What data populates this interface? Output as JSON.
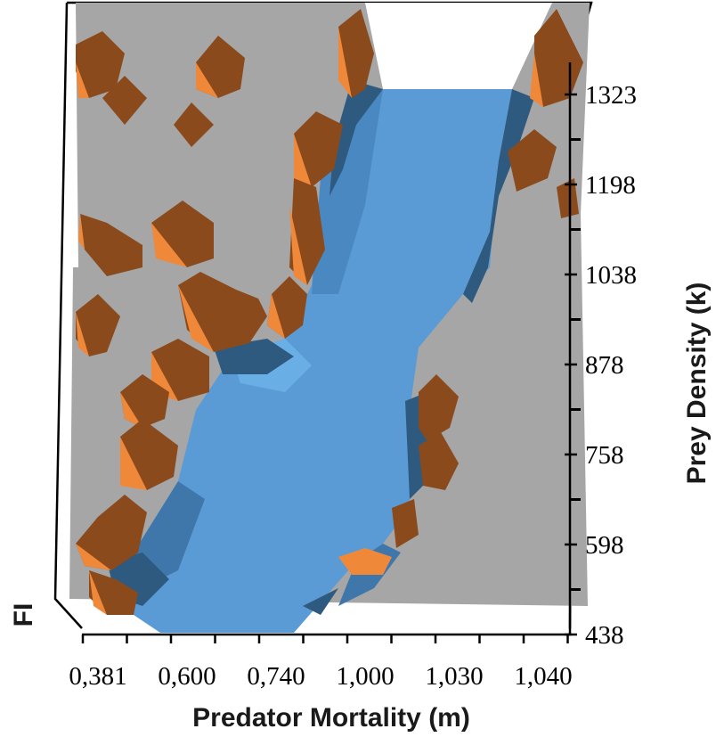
{
  "chart_data": {
    "type": "surface",
    "title": "",
    "xlabel": "Predator Mortality (m)",
    "ylabel": "Prey Density (k)",
    "zlabel": "FI",
    "x_tick_labels": [
      "0,381",
      "0,600",
      "0,740",
      "1,000",
      "1,030",
      "1,040"
    ],
    "y_tick_labels": [
      "438",
      "598",
      "758",
      "878",
      "1038",
      "1198",
      "1323"
    ],
    "view": "top-down 3D surface, FI shown by colour band",
    "legend": "none",
    "colors": {
      "plane": "#a6a6a6",
      "valley": "#5b9bd5",
      "valley_shadow": "#2f5a80",
      "peak_dark": "#8a4a1c",
      "peak_light": "#f0883a",
      "frame": "#000000"
    }
  }
}
